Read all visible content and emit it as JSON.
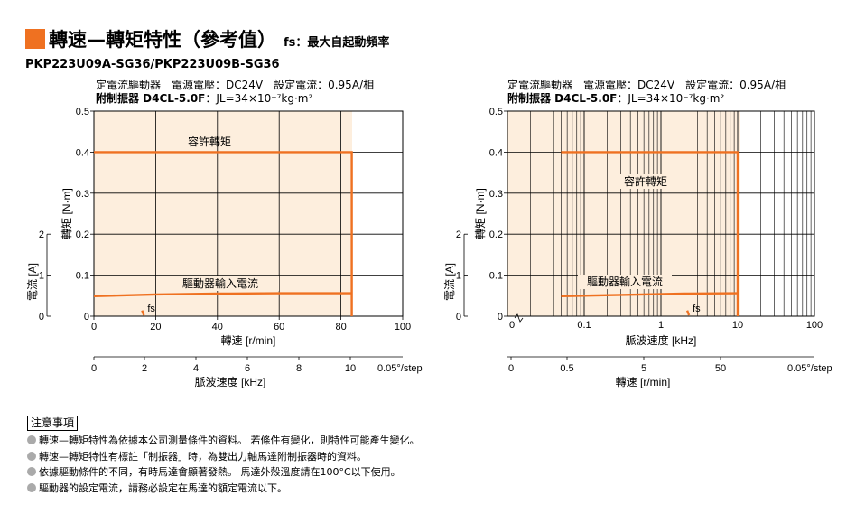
{
  "header": {
    "title": "轉速—轉矩特性（參考值）",
    "subtitle": "fs：最大自起動頻率"
  },
  "model": "PKP223U09A-SG36/PKP223U09B-SG36",
  "left_conditions": {
    "line1": "定電流驅動器　電源電壓：DC24V　設定電流：0.95A/相",
    "line2_bold": "附制振器 D4CL-5.0F",
    "line2_rest": "：JL=34×10⁻⁷kg·m²"
  },
  "right_conditions": {
    "line1": "定電流驅動器　電源電壓：DC24V　設定電流：0.95A/相",
    "line2_bold": "附制振器 D4CL-5.0F",
    "line2_rest": "：JL=34×10⁻⁷kg·m²"
  },
  "colors": {
    "curve": "#ef7121",
    "plot_bg": "#fdeedd",
    "accent": "#ef7121"
  },
  "chart_data": [
    {
      "type": "line",
      "xlabel": "轉速 [r/min]",
      "ylabel": "轉矩 [N·m]",
      "y2label": "電流 [A]",
      "x2label": "脈波速度 [kHz]",
      "xlim": [
        0,
        100
      ],
      "ylim": [
        0,
        0.5
      ],
      "x_ticks": [
        0,
        20,
        40,
        60,
        80,
        100
      ],
      "y_ticks": [
        0,
        0.1,
        0.2,
        0.3,
        0.4,
        0.5
      ],
      "y2_ticks": [
        0,
        1,
        2
      ],
      "x2_ticks": [
        "0",
        "2",
        "4",
        "6",
        "8",
        "10"
      ],
      "x2_unit": "0.05°/step",
      "series": [
        {
          "name": "容許轉矩",
          "x": [
            0,
            81.5,
            83.5,
            83.5
          ],
          "y": [
            0.4,
            0.4,
            0.4,
            0.0
          ]
        },
        {
          "name": "驅動器輸入電流",
          "x": [
            0,
            20,
            40,
            60,
            80,
            83.5
          ],
          "y": [
            0.049,
            0.053,
            0.055,
            0.056,
            0.056,
            0.056
          ]
        }
      ],
      "fs": {
        "label": "fs",
        "x": 15.6
      }
    },
    {
      "type": "line",
      "xscale": "log",
      "xlabel": "脈波速度 [kHz]",
      "ylabel": "轉矩 [N·m]",
      "y2label": "電流 [A]",
      "x2label": "轉速 [r/min]",
      "xlim": [
        0.01,
        100
      ],
      "ylim": [
        0,
        0.5
      ],
      "x_ticks": [
        "0.1",
        "1",
        "10",
        "100"
      ],
      "y_ticks": [
        0,
        0.1,
        0.2,
        0.3,
        0.4,
        0.5
      ],
      "y2_ticks": [
        0,
        1,
        2
      ],
      "x2_ticks": [
        "0",
        "0.5",
        "5",
        "50"
      ],
      "x2_unit": "0.05°/step",
      "series": [
        {
          "name": "容許轉矩",
          "x": [
            0.05,
            10,
            10
          ],
          "y": [
            0.4,
            0.4,
            0.0
          ]
        },
        {
          "name": "驅動器輸入電流",
          "x": [
            0.05,
            0.3,
            2,
            10
          ],
          "y": [
            0.049,
            0.052,
            0.055,
            0.056
          ]
        }
      ],
      "fs": {
        "label": "fs",
        "x": 2.2
      }
    }
  ],
  "notes": {
    "title": "注意事項",
    "items": [
      "轉速—轉矩特性為依據本公司測量條件的資料。 若條件有變化，則特性可能產生變化。",
      "轉速—轉矩特性有標註「制振器」時，為雙出力軸馬達附制振器時的資料。",
      "依據驅動條件的不同，有時馬達會顯著發熱。 馬達外殼溫度請在100°C以下使用。",
      "驅動器的設定電流，請務必設定在馬達的額定電流以下。"
    ]
  }
}
